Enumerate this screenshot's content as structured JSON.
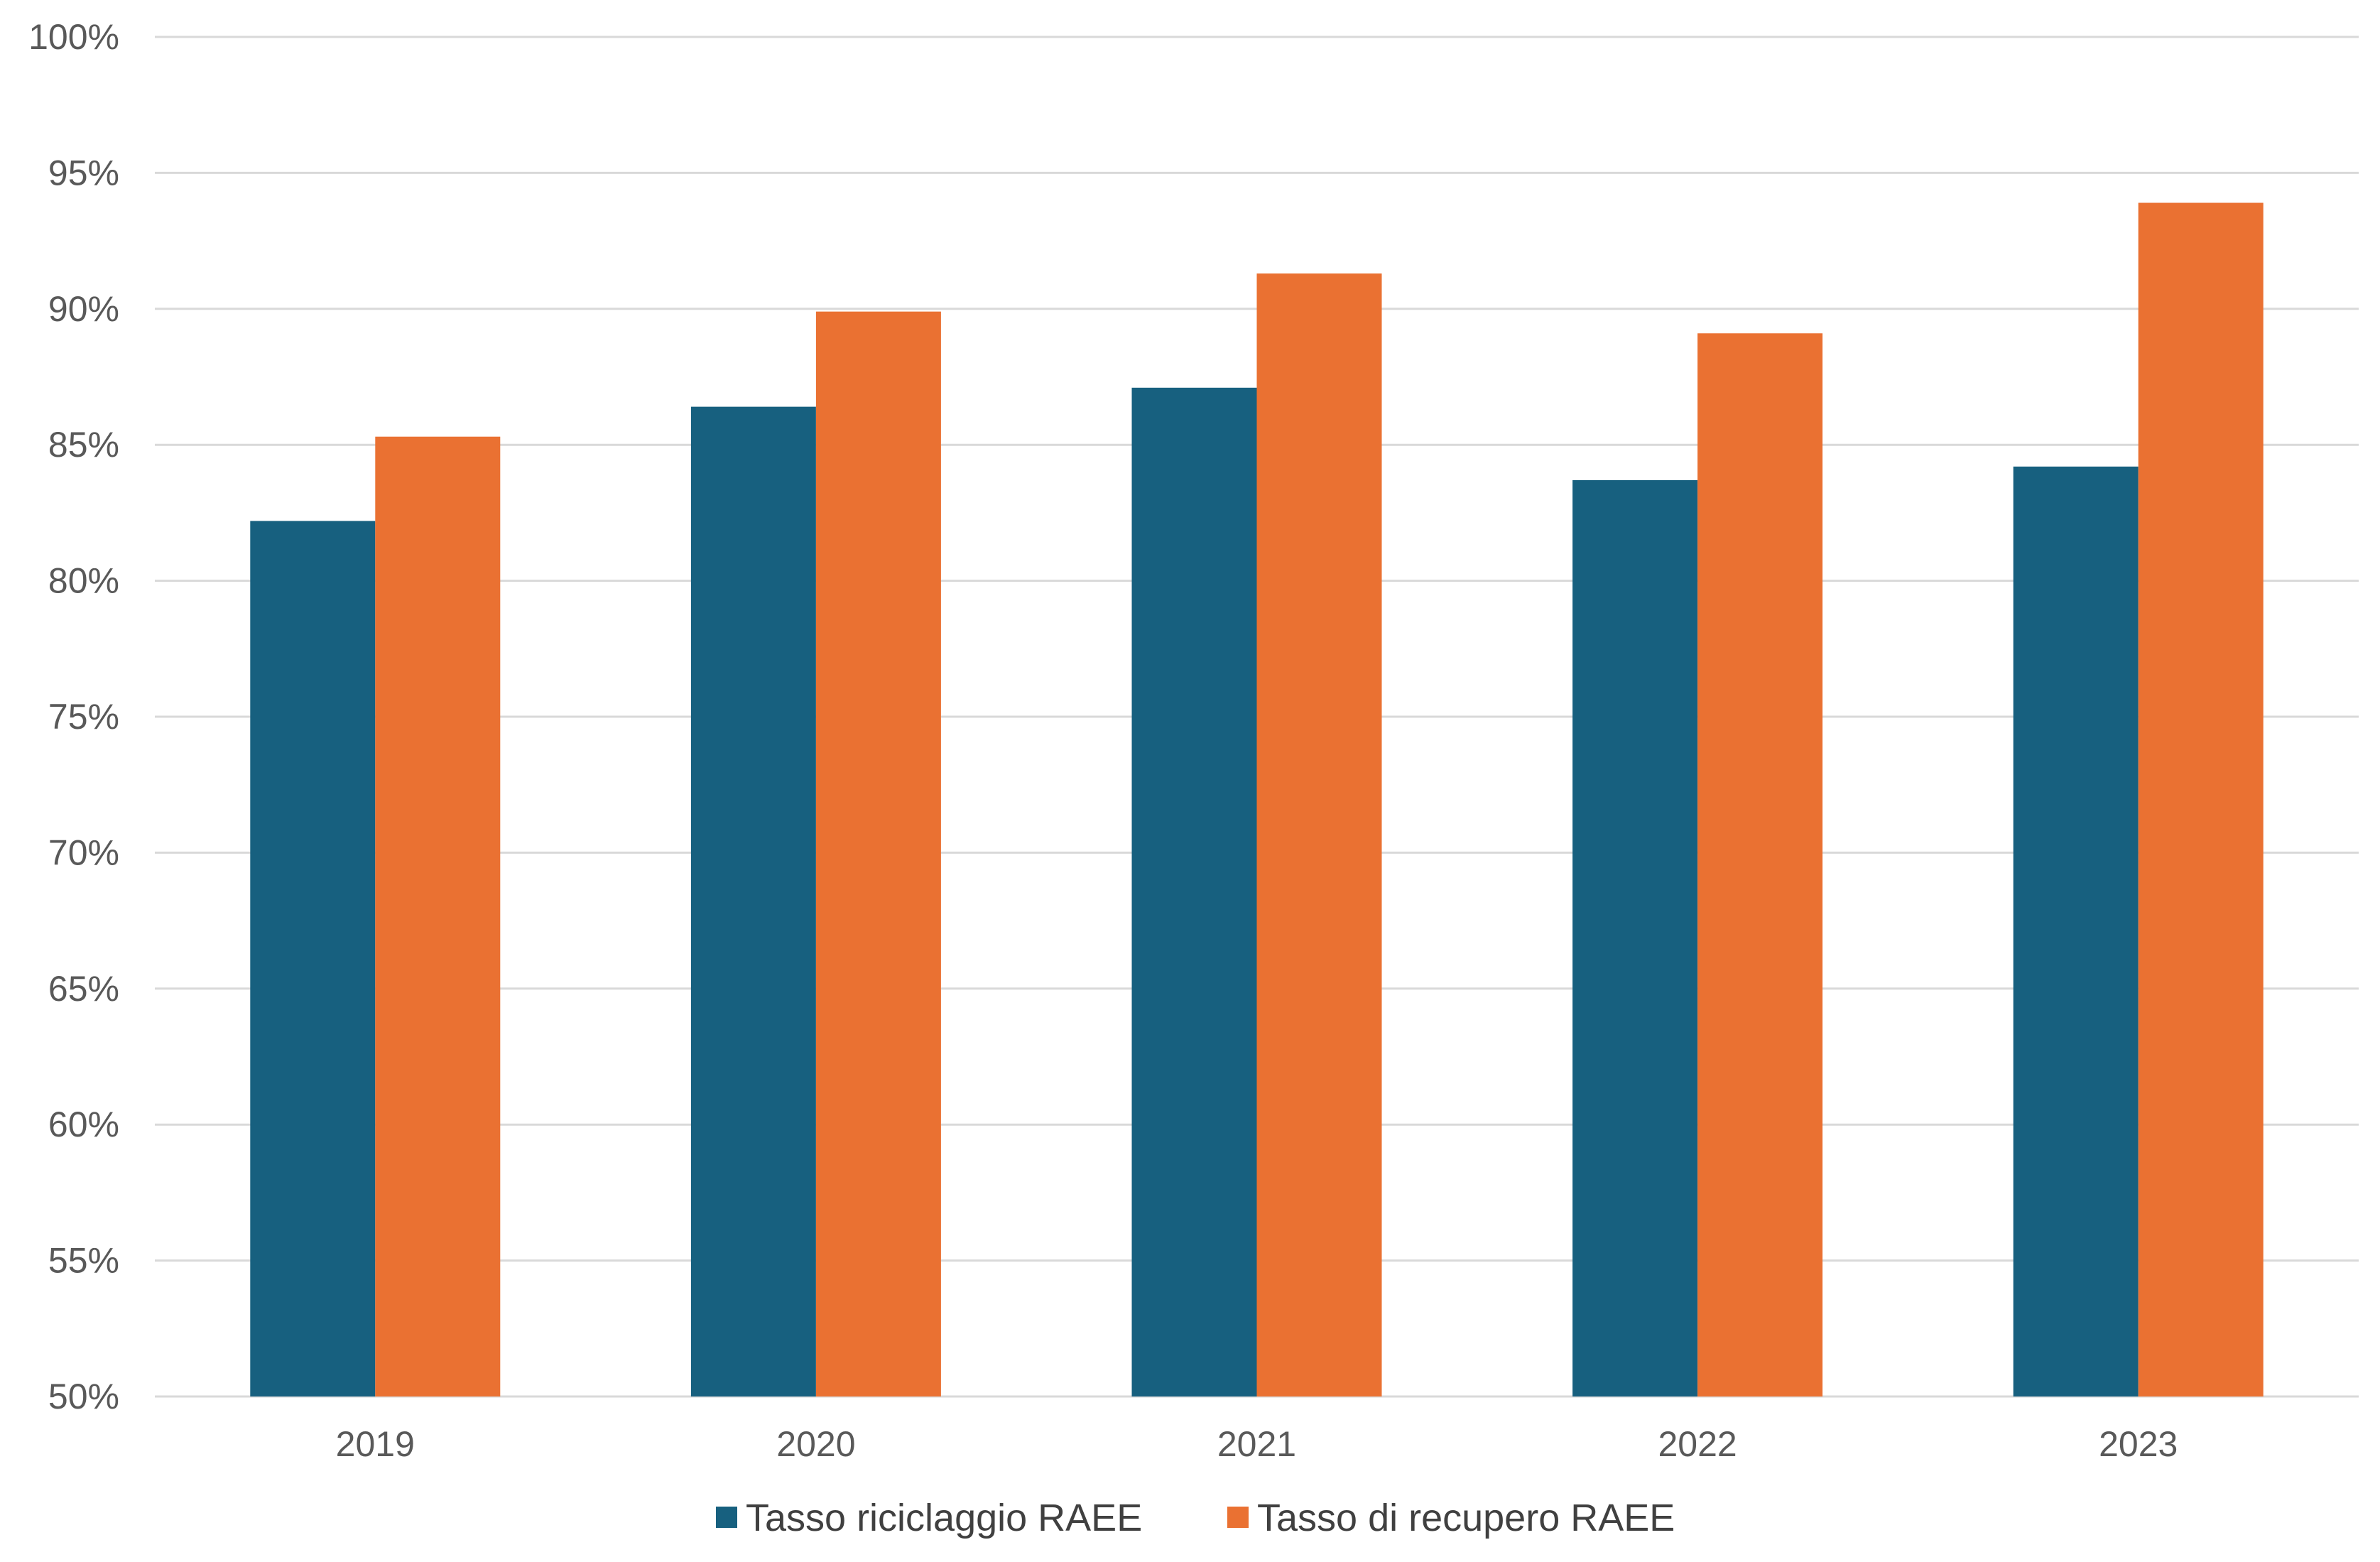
{
  "chart_data": {
    "type": "bar",
    "title": "",
    "xlabel": "",
    "ylabel": "",
    "categories": [
      "2019",
      "2020",
      "2021",
      "2022",
      "2023"
    ],
    "series": [
      {
        "name": "Tasso riciclaggio RAEE",
        "color": "#17607F",
        "values": [
          82.2,
          86.4,
          87.1,
          83.7,
          84.2
        ]
      },
      {
        "name": "Tasso di recupero RAEE",
        "color": "#EA7132",
        "values": [
          85.3,
          89.9,
          91.3,
          89.1,
          93.9
        ]
      }
    ],
    "ylim": [
      50,
      100
    ],
    "yticks": [
      50,
      55,
      60,
      65,
      70,
      75,
      80,
      85,
      90,
      95,
      100
    ],
    "ytick_labels": [
      "50%",
      "55%",
      "60%",
      "65%",
      "70%",
      "75%",
      "80%",
      "85%",
      "90%",
      "95%",
      "100%"
    ],
    "grid": true,
    "gridline_color": "#D9D9D9",
    "legend_position": "bottom"
  }
}
